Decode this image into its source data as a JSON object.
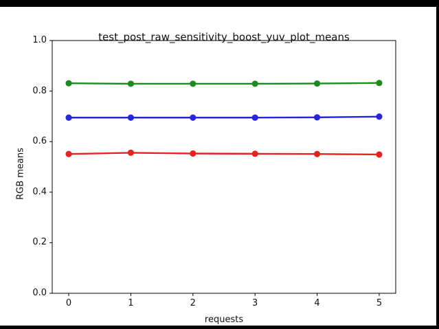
{
  "chart_data": {
    "type": "line",
    "title": "test_post_raw_sensitivity_boost_yuv_plot_means",
    "xlabel": "requests",
    "ylabel": "RGB means",
    "x": [
      0,
      1,
      2,
      3,
      4,
      5
    ],
    "series": [
      {
        "name": "red-channel-mean",
        "color": "#e62320",
        "values": [
          0.551,
          0.556,
          0.553,
          0.552,
          0.551,
          0.549
        ]
      },
      {
        "name": "green-channel-mean",
        "color": "#1f8a1f",
        "values": [
          0.831,
          0.829,
          0.829,
          0.829,
          0.83,
          0.832
        ]
      },
      {
        "name": "blue-channel-mean",
        "color": "#2525dd",
        "values": [
          0.695,
          0.695,
          0.695,
          0.695,
          0.696,
          0.699
        ]
      }
    ],
    "xticks": [
      "0",
      "1",
      "2",
      "3",
      "4",
      "5"
    ],
    "yticks": [
      "0.0",
      "0.2",
      "0.4",
      "0.6",
      "0.8",
      "1.0"
    ],
    "xlim": [
      -0.266,
      5.266
    ],
    "ylim": [
      0.0,
      1.0
    ],
    "grid": false,
    "legend": "none",
    "colors": {
      "background": "#ffffff",
      "letterbox": "#000000",
      "axes_frame": "#000000",
      "text": "#111111"
    }
  }
}
